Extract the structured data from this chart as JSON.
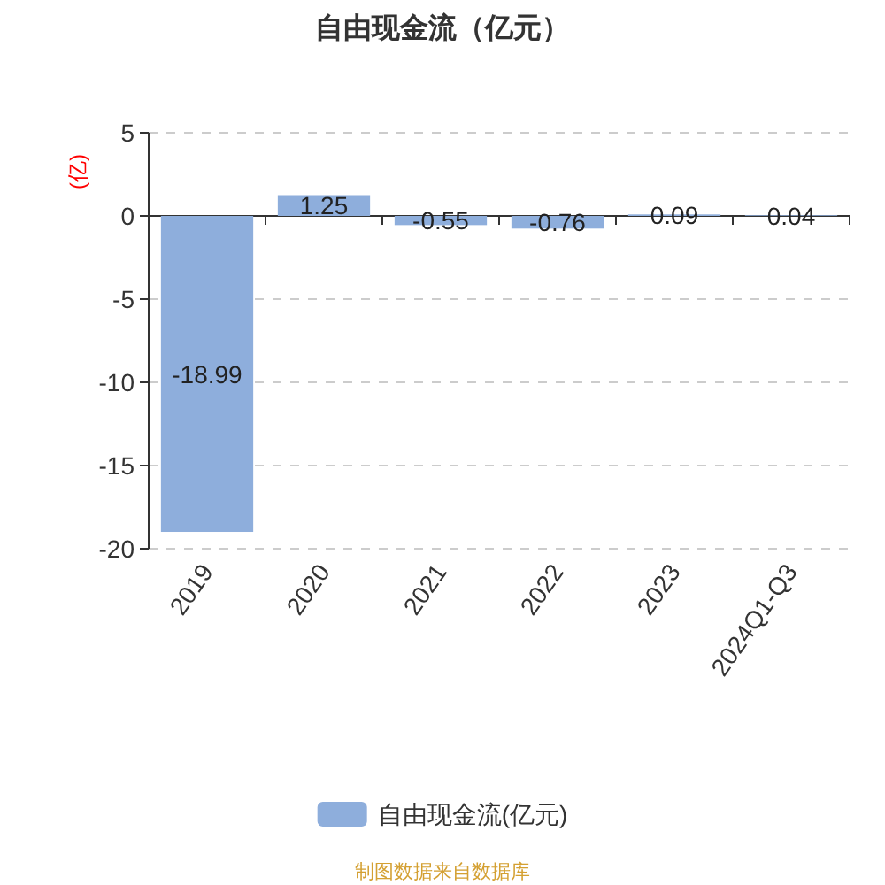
{
  "chart_data": {
    "type": "bar",
    "title": "自由现金流（亿元）",
    "ylabel": "(亿)",
    "categories": [
      "2019",
      "2020",
      "2021",
      "2022",
      "2023",
      "2024Q1-Q3"
    ],
    "series": [
      {
        "name": "自由现金流(亿元)",
        "color": "#8eaedc",
        "values": [
          -18.99,
          1.25,
          -0.55,
          -0.76,
          0.09,
          0.04
        ]
      }
    ],
    "ylim": [
      -20,
      5
    ],
    "yticks": [
      -20,
      -15,
      -10,
      -5,
      0,
      5
    ],
    "grid": "y",
    "legend": "bottom",
    "data_labels": true,
    "annotations": [
      "制图数据来自数据库"
    ]
  }
}
